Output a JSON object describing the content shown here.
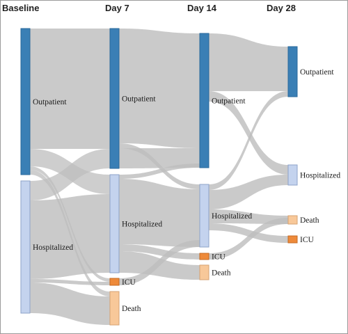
{
  "colors": {
    "outpatient": "#3a7fb5",
    "outpatient_border": "#2a6a9c",
    "hospitalized": "#c4d3ee",
    "hospitalized_border": "#8ea3c8",
    "icu": "#ee8a3a",
    "icu_border": "#c56a22",
    "death": "#f8c899",
    "death_border": "#d6a272",
    "link": "#bdbdbd"
  },
  "header": {
    "baseline": "Baseline",
    "day7": "Day 7",
    "day14": "Day 14",
    "day28": "Day 28"
  },
  "nodes": {
    "b_out": "Outpatient",
    "b_hosp": "Hospitalized",
    "d7_out": "Outpatient",
    "d7_hosp": "Hospitalized",
    "d7_icu": "ICU",
    "d7_death": "Death",
    "d14_out": "Outpatient",
    "d14_hosp": "Hospitalized",
    "d14_icu": "ICU",
    "d14_death": "Death",
    "d28_out": "Outpatient",
    "d28_hosp": "Hospitalized",
    "d28_death": "Death",
    "d28_icu": "ICU"
  }
}
